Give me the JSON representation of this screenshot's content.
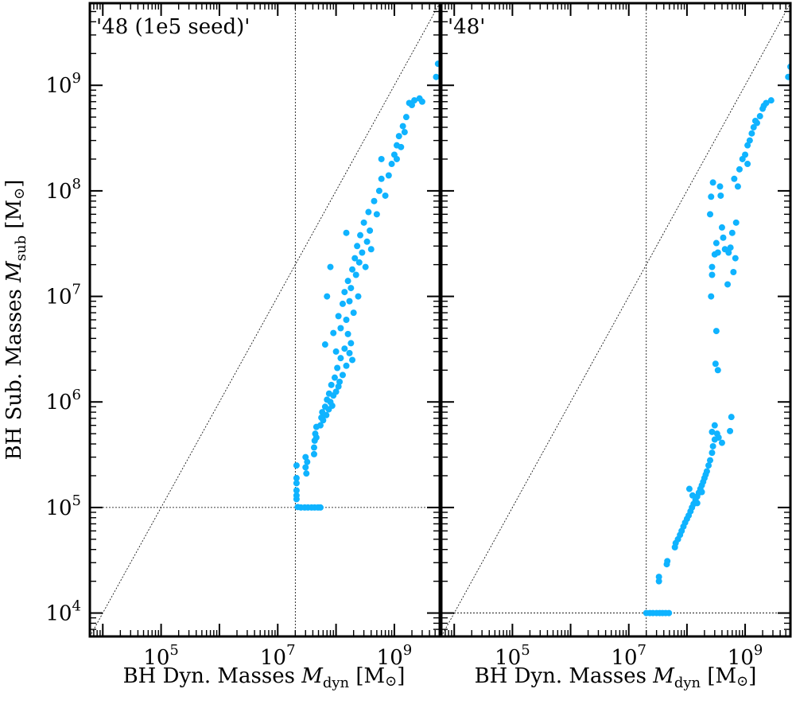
{
  "figure": {
    "ylabel_prefix": "BH Sub. Masses ",
    "ylabel_sym": "M",
    "ylabel_sub": "sub",
    "ylabel_unit": " [M",
    "ylabel_sun": "⊙",
    "ylabel_close": "]",
    "xlabel_prefix": "BH Dyn. Masses ",
    "xlabel_sym": "M",
    "xlabel_sub": "dyn",
    "xlabel_unit": " [M",
    "xlabel_sun": "⊙",
    "xlabel_close": "]",
    "point_color": "#0fb3ff"
  },
  "chart_data": [
    {
      "type": "scatter",
      "title": "'48 (1e5 seed)'",
      "xscale": "log",
      "yscale": "log",
      "xlim": [
        6000.0,
        6000000000.0
      ],
      "ylim": [
        6000.0,
        6000000000.0
      ],
      "x_ticks": [
        "10^5",
        "10^7",
        "10^9"
      ],
      "y_ticks": [
        "10^4",
        "10^5",
        "10^6",
        "10^7",
        "10^8",
        "10^9"
      ],
      "reference_lines": {
        "diagonal": "y = x",
        "vertical_x": 20000000.0,
        "horizontal_y": 100000.0
      },
      "points": [
        [
          21000000.0,
          250000.0
        ],
        [
          21000000.0,
          190000.0
        ],
        [
          21000000.0,
          170000.0
        ],
        [
          21000000.0,
          145000.0
        ],
        [
          21000000.0,
          130000.0
        ],
        [
          21000000.0,
          120000.0
        ],
        [
          22000000.0,
          101000.0
        ],
        [
          25000000.0,
          100000.0
        ],
        [
          29000000.0,
          100000.0
        ],
        [
          33000000.0,
          100000.0
        ],
        [
          38000000.0,
          100000.0
        ],
        [
          43000000.0,
          100000.0
        ],
        [
          49000000.0,
          100000.0
        ],
        [
          54000000.0,
          100000.0
        ],
        [
          30000000.0,
          300000.0
        ],
        [
          30000000.0,
          240000.0
        ],
        [
          31000000.0,
          210000.0
        ],
        [
          32000000.0,
          270000.0
        ],
        [
          42000000.0,
          320000.0
        ],
        [
          42000000.0,
          370000.0
        ],
        [
          43000000.0,
          430000.0
        ],
        [
          44000000.0,
          500000.0
        ],
        [
          46000000.0,
          580000.0
        ],
        [
          46000000.0,
          460000.0
        ],
        [
          54000000.0,
          600000.0
        ],
        [
          56000000.0,
          710000.0
        ],
        [
          58000000.0,
          800000.0
        ],
        [
          60000000.0,
          670000.0
        ],
        [
          65000000.0,
          900000.0
        ],
        [
          68000000.0,
          750000.0
        ],
        [
          70000000.0,
          1050000.0
        ],
        [
          75000000.0,
          850000.0
        ],
        [
          76000000.0,
          1200000.0
        ],
        [
          80000000.0,
          1000000.0
        ],
        [
          83000000.0,
          1450000.0
        ],
        [
          86000000.0,
          920000.0
        ],
        [
          90000000.0,
          1150000.0
        ],
        [
          95000000.0,
          1700000.0
        ],
        [
          100000000.0,
          1250000.0
        ],
        [
          105000000.0,
          2100000.0
        ],
        [
          110000000.0,
          1400000.0
        ],
        [
          115000000.0,
          1550000.0
        ],
        [
          120000000.0,
          2600000.0
        ],
        [
          130000000.0,
          1800000.0
        ],
        [
          140000000.0,
          3200000.0
        ],
        [
          150000000.0,
          2200000.0
        ],
        [
          160000000.0,
          4400000.0
        ],
        [
          170000000.0,
          2900000.0
        ],
        [
          180000000.0,
          3600000.0
        ],
        [
          190000000.0,
          2500000.0
        ],
        [
          100000000.0,
          3000000.0
        ],
        [
          120000000.0,
          5000000.0
        ],
        [
          110000000.0,
          6500000.0
        ],
        [
          130000000.0,
          8500000.0
        ],
        [
          140000000.0,
          11000000.0
        ],
        [
          150000000.0,
          6000000.0
        ],
        [
          160000000.0,
          14000000.0
        ],
        [
          170000000.0,
          9000000.0
        ],
        [
          180000000.0,
          12000000.0
        ],
        [
          190000000.0,
          18000000.0
        ],
        [
          200000000.0,
          7000000.0
        ],
        [
          210000000.0,
          23000000.0
        ],
        [
          220000000.0,
          16000000.0
        ],
        [
          230000000.0,
          30000000.0
        ],
        [
          240000000.0,
          10000000.0
        ],
        [
          250000000.0,
          21000000.0
        ],
        [
          260000000.0,
          38000000.0
        ],
        [
          280000000.0,
          26000000.0
        ],
        [
          300000000.0,
          50000000.0
        ],
        [
          320000000.0,
          19000000.0
        ],
        [
          340000000.0,
          33000000.0
        ],
        [
          360000000.0,
          63000000.0
        ],
        [
          380000000.0,
          42000000.0
        ],
        [
          400000000.0,
          28000000.0
        ],
        [
          80000000.0,
          19000000.0
        ],
        [
          70000000.0,
          10000000.0
        ],
        [
          90000000.0,
          4500000.0
        ],
        [
          65000000.0,
          3500000.0
        ],
        [
          150000000.0,
          40000000.0
        ],
        [
          500000000.0,
          60000000.0
        ],
        [
          450000000.0,
          80000000.0
        ],
        [
          550000000.0,
          100000000.0
        ],
        [
          600000000.0,
          130000000.0
        ],
        [
          700000000.0,
          90000000.0
        ],
        [
          800000000.0,
          140000000.0
        ],
        [
          900000000.0,
          180000000.0
        ],
        [
          1000000000.0,
          220000000.0
        ],
        [
          1100000000.0,
          270000000.0
        ],
        [
          1200000000.0,
          330000000.0
        ],
        [
          1300000000.0,
          260000000.0
        ],
        [
          1400000000.0,
          410000000.0
        ],
        [
          1600000000.0,
          500000000.0
        ],
        [
          1800000000.0,
          680000000.0
        ],
        [
          2200000000.0,
          720000000.0
        ],
        [
          2700000000.0,
          750000000.0
        ],
        [
          5200000000.0,
          1200000000.0
        ],
        [
          5600000000.0,
          1600000000.0
        ],
        [
          1500000000.0,
          360000000.0
        ],
        [
          600000000.0,
          200000000.0
        ],
        [
          1100000000.0,
          200000000.0
        ],
        [
          2000000000.0,
          650000000.0
        ],
        [
          3000000000.0,
          700000000.0
        ]
      ]
    },
    {
      "type": "scatter",
      "title": "'48'",
      "xscale": "log",
      "yscale": "log",
      "xlim": [
        6000.0,
        6000000000.0
      ],
      "ylim": [
        6000.0,
        6000000000.0
      ],
      "x_ticks": [
        "10^5",
        "10^7",
        "10^9"
      ],
      "y_ticks": [
        "10^4",
        "10^5",
        "10^6",
        "10^7",
        "10^8",
        "10^9"
      ],
      "reference_lines": {
        "diagonal": "y = x",
        "vertical_x": 20000000.0,
        "horizontal_y": 10000.0
      },
      "points": [
        [
          20000000.0,
          10000.0
        ],
        [
          23000000.0,
          10000.0
        ],
        [
          26000000.0,
          10000.0
        ],
        [
          30000000.0,
          10000.0
        ],
        [
          34000000.0,
          10000.0
        ],
        [
          38000000.0,
          10000.0
        ],
        [
          43000000.0,
          10000.0
        ],
        [
          49000000.0,
          10000.0
        ],
        [
          33000000.0,
          20000.0
        ],
        [
          33000000.0,
          22000.0
        ],
        [
          45000000.0,
          29000.0
        ],
        [
          46000000.0,
          31000.0
        ],
        [
          62000000.0,
          42000.0
        ],
        [
          64000000.0,
          46000.0
        ],
        [
          70000000.0,
          50000.0
        ],
        [
          76000000.0,
          55000.0
        ],
        [
          81000000.0,
          60000.0
        ],
        [
          87000000.0,
          66000.0
        ],
        [
          93000000.0,
          72000.0
        ],
        [
          100000000.0,
          78000.0
        ],
        [
          107000000.0,
          84000.0
        ],
        [
          115000000.0,
          92000.0
        ],
        [
          122000000.0,
          100000.0
        ],
        [
          130000000.0,
          108000.0
        ],
        [
          140000000.0,
          117000.0
        ],
        [
          150000000.0,
          127000.0
        ],
        [
          160000000.0,
          138000.0
        ],
        [
          170000000.0,
          150000.0
        ],
        [
          180000000.0,
          162000.0
        ],
        [
          190000000.0,
          175000.0
        ],
        [
          200000000.0,
          190000.0
        ],
        [
          210000000.0,
          205000.0
        ],
        [
          220000000.0,
          220000.0
        ],
        [
          235000000.0,
          250000.0
        ],
        [
          250000000.0,
          280000.0
        ],
        [
          270000000.0,
          330000.0
        ],
        [
          110000000.0,
          150000.0
        ],
        [
          125000000.0,
          130000.0
        ],
        [
          150000000.0,
          110000.0
        ],
        [
          180000000.0,
          140000.0
        ],
        [
          280000000.0,
          380000.0
        ],
        [
          300000000.0,
          440000.0
        ],
        [
          300000000.0,
          600000.0
        ],
        [
          330000000.0,
          500000.0
        ],
        [
          350000000.0,
          460000.0
        ],
        [
          400000000.0,
          410000.0
        ],
        [
          270000000.0,
          520000.0
        ],
        [
          550000000.0,
          530000.0
        ],
        [
          580000000.0,
          720000.0
        ],
        [
          310000000.0,
          2300000.0
        ],
        [
          340000000.0,
          2000000.0
        ],
        [
          320000000.0,
          4700000.0
        ],
        [
          260000000.0,
          10000000.0
        ],
        [
          270000000.0,
          16000000.0
        ],
        [
          250000000.0,
          60000000.0
        ],
        [
          260000000.0,
          88000000.0
        ],
        [
          280000000.0,
          120000000.0
        ],
        [
          300000000.0,
          25000000.0
        ],
        [
          320000000.0,
          32000000.0
        ],
        [
          340000000.0,
          26000000.0
        ],
        [
          370000000.0,
          110000000.0
        ],
        [
          400000000.0,
          45000000.0
        ],
        [
          420000000.0,
          36000000.0
        ],
        [
          450000000.0,
          28000000.0
        ],
        [
          500000000.0,
          13000000.0
        ],
        [
          520000000.0,
          26000000.0
        ],
        [
          560000000.0,
          29000000.0
        ],
        [
          600000000.0,
          40000000.0
        ],
        [
          630000000.0,
          17000000.0
        ],
        [
          680000000.0,
          23000000.0
        ],
        [
          270000000.0,
          19000000.0
        ],
        [
          380000000.0,
          90000000.0
        ],
        [
          650000000.0,
          130000000.0
        ],
        [
          700000000.0,
          50000000.0
        ],
        [
          750000000.0,
          110000000.0
        ],
        [
          800000000.0,
          160000000.0
        ],
        [
          900000000.0,
          200000000.0
        ],
        [
          1000000000.0,
          220000000.0
        ],
        [
          1100000000.0,
          270000000.0
        ],
        [
          1200000000.0,
          300000000.0
        ],
        [
          1300000000.0,
          350000000.0
        ],
        [
          1400000000.0,
          400000000.0
        ],
        [
          1600000000.0,
          440000000.0
        ],
        [
          1800000000.0,
          510000000.0
        ],
        [
          2000000000.0,
          600000000.0
        ],
        [
          2300000000.0,
          680000000.0
        ],
        [
          2800000000.0,
          720000000.0
        ],
        [
          5500000000.0,
          1200000000.0
        ],
        [
          6000000000.0,
          1500000000.0
        ],
        [
          1100000000.0,
          180000000.0
        ],
        [
          1500000000.0,
          460000000.0
        ],
        [
          2100000000.0,
          640000000.0
        ]
      ]
    }
  ]
}
